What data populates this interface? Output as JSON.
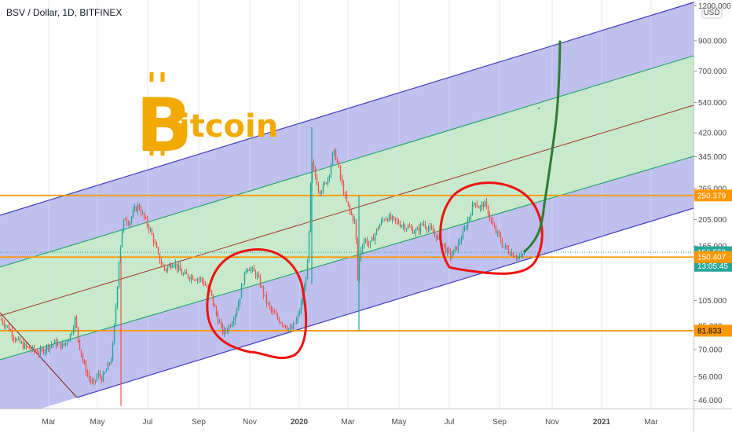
{
  "chart_data": {
    "type": "candlestick",
    "title": "BSV / Dollar, 1D, BITFINEX",
    "currency": "USD",
    "y_scale": "log",
    "ylim": [
      43,
      1260
    ],
    "x_ticks": [
      "Mar",
      "May",
      "Jul",
      "Sep",
      "Nov",
      "2020",
      "Mar",
      "May",
      "Jul",
      "Sep",
      "Nov",
      "2021",
      "Mar"
    ],
    "y_ticks": [
      "1200.000",
      "900.000",
      "700.000",
      "540.000",
      "420.000",
      "345.000",
      "265.000",
      "205.000",
      "165.000",
      "105.000",
      "85.000",
      "70.000",
      "56.000",
      "46.000"
    ],
    "price_tags": [
      {
        "label": "250.379",
        "value": 250.379,
        "color": "#ff9800",
        "text_color": "#ffffff"
      },
      {
        "label": "156.550",
        "value": 156.55,
        "color": "#26a69a",
        "text_color": "#ffffff"
      },
      {
        "label": "13:05:45",
        "value": 140,
        "color": "#26a69a",
        "text_color": "#ffffff"
      },
      {
        "label": "150.407",
        "value": 150.407,
        "color": "#ff9800",
        "text_color": "#ffffff"
      },
      {
        "label": "81.833",
        "value": 81.833,
        "color": "#ff9800",
        "text_color": "#000000"
      }
    ],
    "horizontal_levels": [
      250.379,
      150.407,
      81.833
    ],
    "logo_text": "itcoin",
    "logo_symbol": "B",
    "colors": {
      "up": "#26a69a",
      "down": "#ef5350",
      "channel_outer": "#3f3fbf",
      "channel_inner": "#22a36a",
      "channel_mid": "#a0392a",
      "level": "#ff9800",
      "annotation_circle": "#ee1111",
      "projection": "#2e7d32",
      "logo": "#f2a900"
    }
  }
}
